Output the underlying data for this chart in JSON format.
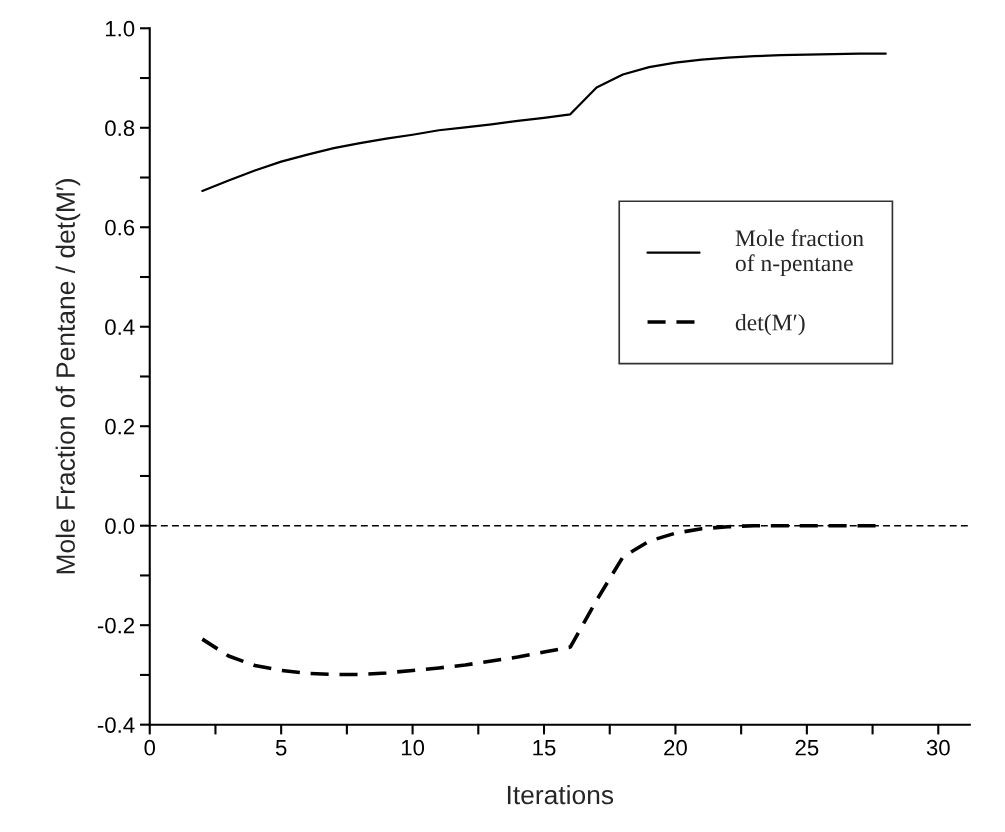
{
  "chart_data": {
    "type": "line",
    "xlabel": "Iterations",
    "ylabel": "Mole Fraction of Pentane / det(M′)",
    "x": [
      2,
      3,
      4,
      5,
      6,
      7,
      8,
      9,
      10,
      11,
      12,
      13,
      14,
      15,
      16,
      17,
      18,
      19,
      20,
      21,
      22,
      23,
      24,
      25,
      26,
      27,
      28
    ],
    "series": [
      {
        "name": "Mole fraction\nof n-pentane",
        "color": "#000000",
        "line_style": "solid",
        "values": [
          0.673,
          0.694,
          0.714,
          0.732,
          0.746,
          0.759,
          0.769,
          0.778,
          0.786,
          0.795,
          0.801,
          0.807,
          0.814,
          0.82,
          0.827,
          0.881,
          0.907,
          0.922,
          0.931,
          0.937,
          0.941,
          0.944,
          0.946,
          0.947,
          0.948,
          0.949,
          0.949
        ]
      },
      {
        "name": "det(M′)",
        "color": "#000000",
        "line_style": "dashed",
        "values": [
          -0.228,
          -0.262,
          -0.281,
          -0.291,
          -0.297,
          -0.299,
          -0.299,
          -0.296,
          -0.291,
          -0.286,
          -0.28,
          -0.272,
          -0.264,
          -0.254,
          -0.244,
          -0.15,
          -0.063,
          -0.031,
          -0.015,
          -0.006,
          -0.002,
          0,
          0,
          0,
          0,
          0,
          0
        ]
      }
    ],
    "ref_lines": [
      {
        "axis": "y",
        "value": 0,
        "color": "#000000",
        "line_style": "dashed"
      }
    ],
    "xlim": [
      0,
      31.2
    ],
    "ylim": [
      -0.4,
      1.0
    ],
    "xticks": [
      0,
      {
        "value": 2.5,
        "label": null
      },
      5,
      {
        "value": 7.5,
        "label": null
      },
      10,
      {
        "value": 12.5,
        "label": null
      },
      15,
      {
        "value": 17.5,
        "label": null
      },
      20,
      {
        "value": 22.5,
        "label": null
      },
      25,
      {
        "value": 27.5,
        "label": null
      },
      30
    ],
    "yticks": [
      {
        "value": -0.4,
        "label": "-0.4"
      },
      {
        "value": -0.3,
        "label": null
      },
      {
        "value": -0.2,
        "label": "-0.2"
      },
      {
        "value": -0.1,
        "label": null
      },
      {
        "value": 0,
        "label": "0.0"
      },
      {
        "value": 0.1,
        "label": null
      },
      {
        "value": 0.2,
        "label": "0.2"
      },
      {
        "value": 0.3,
        "label": null
      },
      {
        "value": 0.4,
        "label": "0.4"
      },
      {
        "value": 0.5,
        "label": null
      },
      {
        "value": 0.6,
        "label": "0.6"
      },
      {
        "value": 0.7,
        "label": null
      },
      {
        "value": 0.8,
        "label": "0.8"
      },
      {
        "value": 0.9,
        "label": null
      },
      {
        "value": 1.0,
        "label": "1.0"
      }
    ],
    "grid": false,
    "legend": "right",
    "marker": "none"
  }
}
